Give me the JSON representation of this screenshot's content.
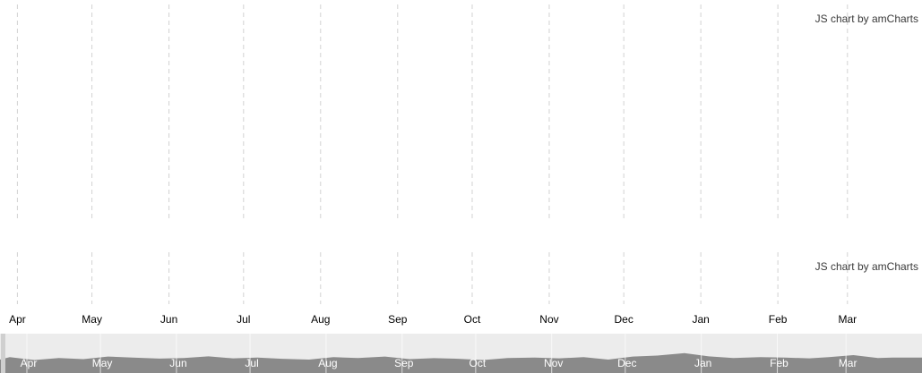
{
  "chart_data": {
    "type": "line",
    "x_axis": {
      "type": "date",
      "range": [
        "2016-04-01",
        "2017-04-01"
      ],
      "ticks": [
        {
          "label": "Apr",
          "date": "2016-04-01"
        },
        {
          "label": "May",
          "date": "2016-05-01"
        },
        {
          "label": "Jun",
          "date": "2016-06-01"
        },
        {
          "label": "Jul",
          "date": "2016-07-01"
        },
        {
          "label": "Aug",
          "date": "2016-08-01"
        },
        {
          "label": "Sep",
          "date": "2016-09-01"
        },
        {
          "label": "Oct",
          "date": "2016-10-01"
        },
        {
          "label": "Nov",
          "date": "2016-11-01"
        },
        {
          "label": "Dec",
          "date": "2016-12-01"
        },
        {
          "label": "Jan",
          "date": "2017-01-01"
        },
        {
          "label": "Feb",
          "date": "2017-02-01"
        },
        {
          "label": "Mar",
          "date": "2017-03-01"
        }
      ],
      "visible_range": [
        "2016-03-25",
        "2017-03-31"
      ]
    },
    "grid": {
      "vertical": "dashed",
      "horizontal": "none"
    },
    "panels": [
      {
        "name": "main",
        "series": []
      },
      {
        "name": "secondary",
        "series": []
      }
    ],
    "scrollbar": {
      "ticks": [
        "Apr",
        "May",
        "Jun",
        "Jul",
        "Aug",
        "Sep",
        "Oct",
        "Nov",
        "Dec",
        "Jan",
        "Feb",
        "Mar"
      ],
      "series_color": "#8a8a8a",
      "background_color": "#e8e8e8",
      "values": [
        {
          "date": "2016-03-25",
          "value": 40
        },
        {
          "date": "2016-04-05",
          "value": 52
        },
        {
          "date": "2016-04-15",
          "value": 38
        },
        {
          "date": "2016-04-25",
          "value": 48
        },
        {
          "date": "2016-05-05",
          "value": 42
        },
        {
          "date": "2016-05-15",
          "value": 55
        },
        {
          "date": "2016-05-25",
          "value": 50
        },
        {
          "date": "2016-06-05",
          "value": 45
        },
        {
          "date": "2016-06-15",
          "value": 48
        },
        {
          "date": "2016-06-25",
          "value": 56
        },
        {
          "date": "2016-07-05",
          "value": 46
        },
        {
          "date": "2016-07-15",
          "value": 50
        },
        {
          "date": "2016-07-25",
          "value": 44
        },
        {
          "date": "2016-08-05",
          "value": 40
        },
        {
          "date": "2016-08-15",
          "value": 52
        },
        {
          "date": "2016-08-25",
          "value": 48
        },
        {
          "date": "2016-09-05",
          "value": 55
        },
        {
          "date": "2016-09-15",
          "value": 42
        },
        {
          "date": "2016-09-25",
          "value": 47
        },
        {
          "date": "2016-10-05",
          "value": 44
        },
        {
          "date": "2016-10-15",
          "value": 38
        },
        {
          "date": "2016-10-25",
          "value": 48
        },
        {
          "date": "2016-11-05",
          "value": 50
        },
        {
          "date": "2016-11-15",
          "value": 46
        },
        {
          "date": "2016-11-25",
          "value": 52
        },
        {
          "date": "2016-12-05",
          "value": 40
        },
        {
          "date": "2016-12-15",
          "value": 55
        },
        {
          "date": "2016-12-25",
          "value": 60
        },
        {
          "date": "2017-01-05",
          "value": 72
        },
        {
          "date": "2017-01-15",
          "value": 56
        },
        {
          "date": "2017-01-25",
          "value": 48
        },
        {
          "date": "2017-02-05",
          "value": 52
        },
        {
          "date": "2017-02-15",
          "value": 50
        },
        {
          "date": "2017-02-25",
          "value": 46
        },
        {
          "date": "2017-03-05",
          "value": 52
        },
        {
          "date": "2017-03-15",
          "value": 62
        },
        {
          "date": "2017-03-25",
          "value": 48
        },
        {
          "date": "2017-03-31",
          "value": 50
        }
      ]
    }
  },
  "credits": {
    "main": "JS chart by amCharts",
    "secondary": "JS chart by amCharts"
  }
}
